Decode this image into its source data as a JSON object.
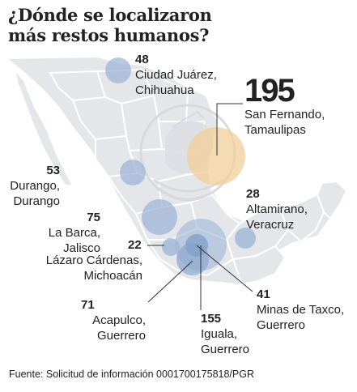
{
  "title": {
    "line1": "¿Dónde se localizaron",
    "line2": "más restos humanos?"
  },
  "colors": {
    "bubble_blue": "#9fb6d6",
    "bubble_orange": "#f1cf9a",
    "map_fill": "#e4e6ea",
    "emblem": "#d6d8dc",
    "leader": "#333333"
  },
  "icons": {
    "emblem": "mexican-coat-of-arms-watermark-icon"
  },
  "locations": [
    {
      "id": "ciudad-juarez",
      "count": "48",
      "city": "Ciudad Juárez,",
      "state": "Chihuahua",
      "value": 48
    },
    {
      "id": "san-fernando",
      "count": "195",
      "city": "San Fernando,",
      "state": "Tamaulipas",
      "value": 195
    },
    {
      "id": "durango",
      "count": "53",
      "city": "Durango,",
      "state": "Durango",
      "value": 53
    },
    {
      "id": "altamirano",
      "count": "28",
      "city": "Altamirano,",
      "state": "Veracruz",
      "value": 28
    },
    {
      "id": "la-barca",
      "count": "75",
      "city": "La Barca,",
      "state": "Jalisco",
      "value": 75
    },
    {
      "id": "lazaro-cardenas",
      "count": "22",
      "city": "Lázaro Cárdenas,",
      "state": "Michoacán",
      "value": 22
    },
    {
      "id": "minas-de-taxco",
      "count": "41",
      "city": "Minas de Taxco,",
      "state": "Guerrero",
      "value": 41
    },
    {
      "id": "acapulco",
      "count": "71",
      "city": "Acapulco,",
      "state": "Guerrero",
      "value": 71
    },
    {
      "id": "iguala",
      "count": "155",
      "city": "Iguala,",
      "state": "Guerrero",
      "value": 155
    }
  ],
  "source": "Fuente: Solicitud de información 0001700175818/PGR"
}
